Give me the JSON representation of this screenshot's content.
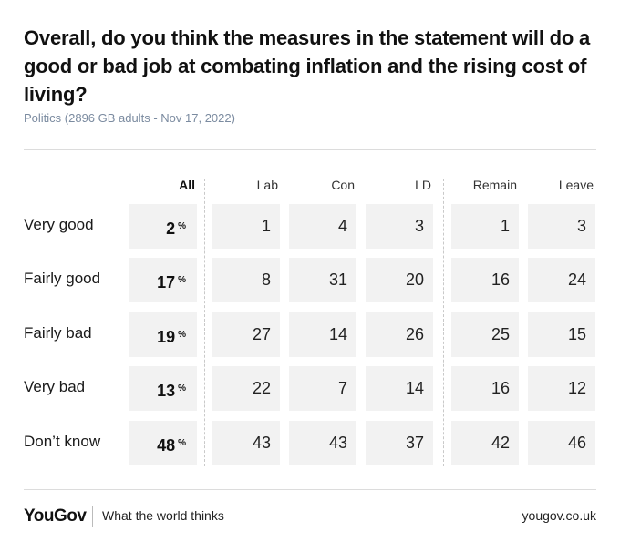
{
  "title": "Overall, do you think the measures in the statement will do a good or bad job at combating inflation and the rising cost of living?",
  "subtitle": "Politics (2896 GB adults - Nov 17, 2022)",
  "footer": {
    "logo": "YouGov",
    "tagline": "What the world thinks",
    "url": "yougov.co.uk"
  },
  "chart_data": {
    "type": "table",
    "title": "Overall, do you think the measures in the statement will do a good or bad job at combating inflation and the rising cost of living?",
    "unit": "%",
    "columns": [
      "All",
      "Lab",
      "Con",
      "LD",
      "Remain",
      "Leave"
    ],
    "rows": [
      {
        "label": "Very good",
        "values": [
          2,
          1,
          4,
          3,
          1,
          3
        ]
      },
      {
        "label": "Fairly good",
        "values": [
          17,
          8,
          31,
          20,
          16,
          24
        ]
      },
      {
        "label": "Fairly bad",
        "values": [
          19,
          27,
          14,
          26,
          25,
          15
        ]
      },
      {
        "label": "Very bad",
        "values": [
          13,
          22,
          7,
          14,
          16,
          12
        ]
      },
      {
        "label": "Don’t know",
        "values": [
          48,
          43,
          43,
          37,
          42,
          46
        ]
      }
    ]
  }
}
